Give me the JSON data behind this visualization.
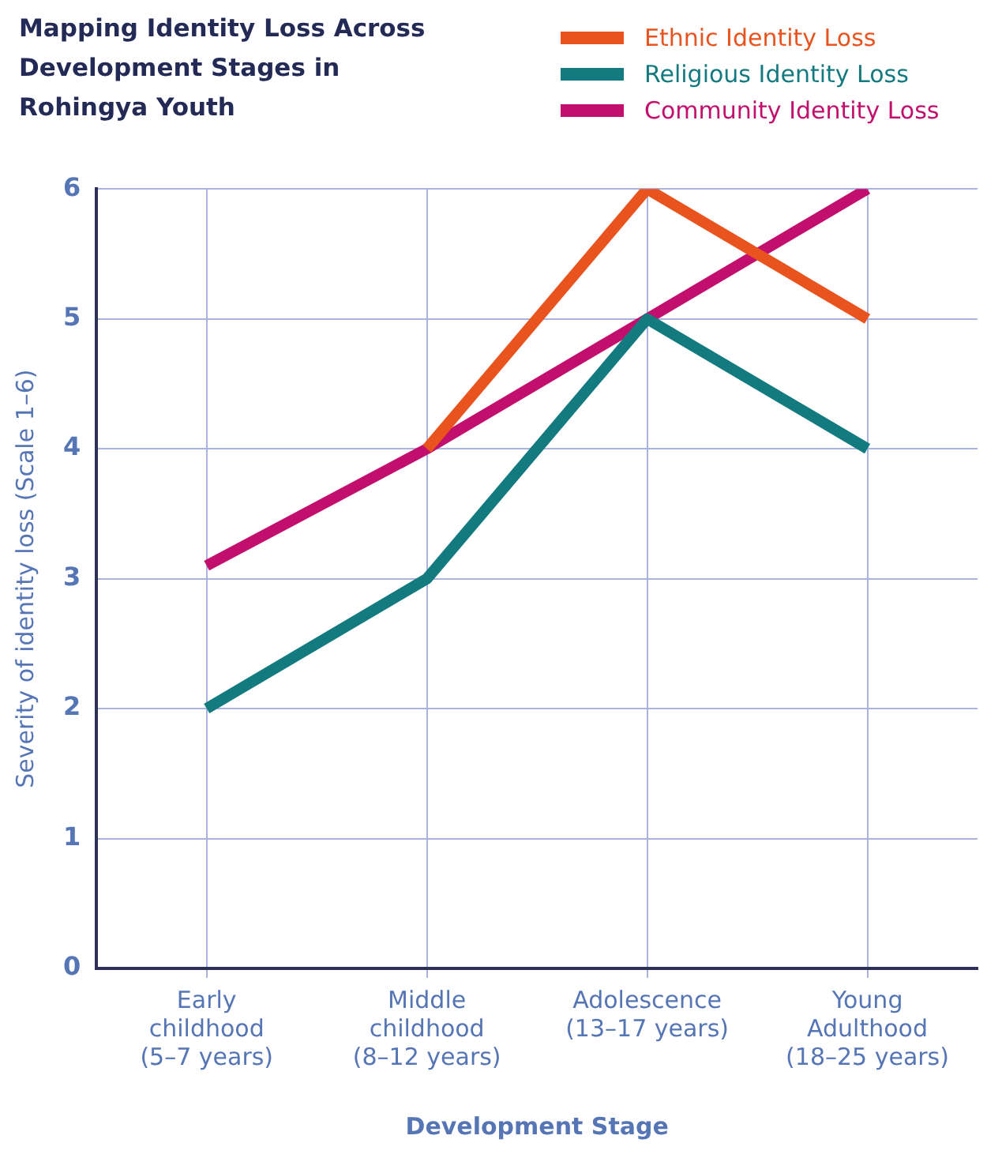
{
  "chart_data": {
    "type": "line",
    "title": "Mapping Identity Loss Across Development Stages in Rohingya Youth",
    "xlabel": "Development Stage",
    "ylabel": "Severity of identity loss (Scale 1–6)",
    "categories": [
      "Early\nchildhood\n(5–7 years)",
      "Middle\nchildhood\n(8–12 years)",
      "Adolescence\n(13–17 years)",
      "Young\nAdulthood\n(18–25 years)"
    ],
    "series": [
      {
        "name": "Ethnic Identity Loss",
        "color": "#e8531e",
        "values": [
          null,
          4,
          6,
          5
        ]
      },
      {
        "name": "Religious Identity Loss",
        "color": "#137a7f",
        "values": [
          2,
          3,
          5,
          4
        ]
      },
      {
        "name": "Community Identity Loss",
        "color": "#c20e6c",
        "values": [
          3.1,
          4,
          5,
          6
        ]
      }
    ],
    "ylim": [
      0,
      6
    ],
    "yticks": [
      0,
      1,
      2,
      3,
      4,
      5,
      6
    ],
    "grid": true,
    "legend": "top right",
    "marker": "none",
    "line_style": "solid"
  }
}
